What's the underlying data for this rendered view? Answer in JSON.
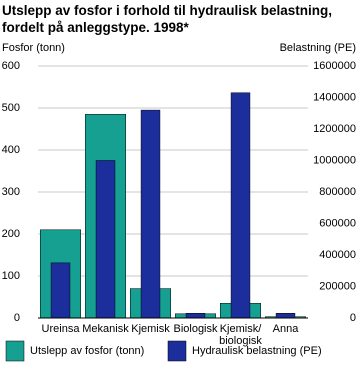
{
  "chart_data": {
    "type": "bar",
    "title": "Utslepp av fosfor i forhold til hydraulisk belastning, fordelt på anleggstype. 1998*",
    "ylabel": "Fosfor (tonn)",
    "y2label": "Belastning (PE)",
    "categories": [
      "Ureinsa",
      "Mekanisk",
      "Kjemisk",
      "Biologisk",
      "Kjemisk/ biologisk",
      "Anna"
    ],
    "series": [
      {
        "name": "Utslepp av fosfor (tonn)",
        "color": "#16a091",
        "values": [
          210,
          485,
          70,
          10,
          35,
          3
        ]
      },
      {
        "name": "Hydraulisk belastning (PE)",
        "color": "#1c2e9c",
        "axis": "y2",
        "values": [
          350000,
          1000000,
          1320000,
          30000,
          1430000,
          30000
        ]
      }
    ],
    "ylim": [
      0,
      600
    ],
    "yticks": [
      0,
      100,
      200,
      300,
      400,
      500,
      600
    ],
    "y2lim": [
      0,
      1600000
    ],
    "y2ticks": [
      0,
      200000,
      400000,
      600000,
      800000,
      1000000,
      1200000,
      1400000,
      1600000
    ],
    "grid": true
  }
}
